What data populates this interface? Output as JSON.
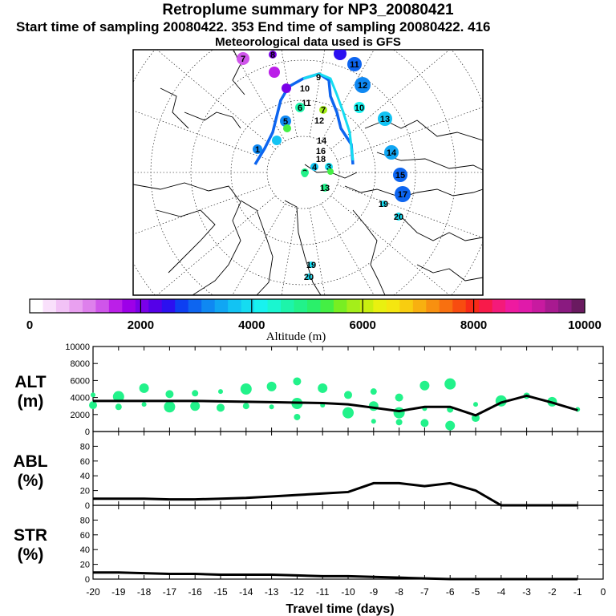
{
  "header": {
    "title": "Retroplume summary for NP3_20080421",
    "sampling": "Start time of sampling 20080422.   353     End time of sampling 20080422.   416",
    "met": "Meteorological data used is GFS"
  },
  "colorbar": {
    "ticks": [
      "0",
      "2000",
      "4000",
      "6000",
      "8000",
      "10000"
    ],
    "label": "Altitude (m)",
    "colors": [
      "#ffffff",
      "#f9e0fb",
      "#f2c2f6",
      "#e9a0f0",
      "#de80ec",
      "#cf55ea",
      "#bb1fe8",
      "#9d00e8",
      "#7a00e8",
      "#5500e8",
      "#2c10f0",
      "#0d3ff2",
      "#0d65f0",
      "#0f88f2",
      "#10a6f3",
      "#12c3f3",
      "#15dcf1",
      "#18f2ef",
      "#1af6d0",
      "#1df4aa",
      "#22f28a",
      "#2af06a",
      "#44ef44",
      "#78ee22",
      "#a4ee1a",
      "#c9ef10",
      "#e9f010",
      "#f5e610",
      "#f8cd10",
      "#f8b010",
      "#f89010",
      "#f87010",
      "#f84c10",
      "#f82a18",
      "#f81a4a",
      "#f41a7a",
      "#ee1aa0",
      "#e01aaa",
      "#c81aa0",
      "#a81a90",
      "#8a1a80",
      "#6a1a60"
    ]
  },
  "map": {
    "labels": [
      {
        "t": "7",
        "c": "#cf55ea"
      },
      {
        "t": "8",
        "c": "#7a00e8"
      },
      {
        "t": "11",
        "c": "#0d65f0"
      },
      {
        "t": "12",
        "c": "#0f88f2"
      },
      {
        "t": "13",
        "c": "#12c3f3"
      },
      {
        "t": "14",
        "c": "#10a6f3"
      },
      {
        "t": "15",
        "c": "#0d65f0"
      },
      {
        "t": "17",
        "c": "#0d65f0"
      },
      {
        "t": "10",
        "c": "#18f2ef"
      },
      {
        "t": "9",
        "c": "#ffffff"
      },
      {
        "t": "10",
        "c": "#ffffff"
      },
      {
        "t": "11",
        "c": "#ffffff"
      },
      {
        "t": "12",
        "c": "#ffffff"
      },
      {
        "t": "14",
        "c": "#ffffff"
      },
      {
        "t": "16",
        "c": "#ffffff"
      },
      {
        "t": "18",
        "c": "#ffffff"
      },
      {
        "t": "20",
        "c": "#15dcf1"
      },
      {
        "t": "19",
        "c": "#15dcf1"
      },
      {
        "t": "20",
        "c": "#15dcf1"
      },
      {
        "t": "19",
        "c": "#15dcf1"
      },
      {
        "t": "1",
        "c": "#0f88f2"
      },
      {
        "t": "5",
        "c": "#0f88f2"
      },
      {
        "t": "6",
        "c": "#1df4aa"
      },
      {
        "t": "7",
        "c": "#a4ee1a"
      },
      {
        "t": "3",
        "c": "#15dcf1"
      },
      {
        "t": "4",
        "c": "#12c3f3"
      },
      {
        "t": "2",
        "c": "#22f28a"
      },
      {
        "t": "13",
        "c": "#22f28a"
      }
    ]
  },
  "chart_data": [
    {
      "type": "scatter",
      "title": "ALT (m)",
      "ylabel": "ALT (m)",
      "xlabel": "",
      "ylim": [
        0,
        10000
      ],
      "yticks": [
        "0",
        "2000",
        "4000",
        "6000",
        "8000",
        "10000"
      ],
      "x": [
        -20,
        -19,
        -18,
        -17,
        -16,
        -15,
        -14,
        -13,
        -12,
        -11,
        -10,
        -9,
        -8,
        -7,
        -6,
        -5,
        -4,
        -3,
        -2,
        -1
      ],
      "mean_line": [
        3600,
        3600,
        3600,
        3600,
        3600,
        3550,
        3500,
        3450,
        3400,
        3350,
        3200,
        2800,
        2400,
        2900,
        2900,
        1900,
        3400,
        4200,
        3400,
        2500
      ],
      "scatter": [
        {
          "x": -20,
          "y": 4300
        },
        {
          "x": -20,
          "y": 3100
        },
        {
          "x": -19,
          "y": 4100
        },
        {
          "x": -19,
          "y": 2900
        },
        {
          "x": -18,
          "y": 5100
        },
        {
          "x": -18,
          "y": 3200
        },
        {
          "x": -17,
          "y": 4400
        },
        {
          "x": -17,
          "y": 2900
        },
        {
          "x": -16,
          "y": 4500
        },
        {
          "x": -16,
          "y": 3000
        },
        {
          "x": -15,
          "y": 4700
        },
        {
          "x": -15,
          "y": 2800
        },
        {
          "x": -14,
          "y": 5000
        },
        {
          "x": -14,
          "y": 3000
        },
        {
          "x": -13,
          "y": 5300
        },
        {
          "x": -13,
          "y": 2900
        },
        {
          "x": -12,
          "y": 5900
        },
        {
          "x": -12,
          "y": 3300
        },
        {
          "x": -12,
          "y": 1700
        },
        {
          "x": -11,
          "y": 5100
        },
        {
          "x": -11,
          "y": 3100
        },
        {
          "x": -10,
          "y": 4300
        },
        {
          "x": -10,
          "y": 2200
        },
        {
          "x": -9,
          "y": 4700
        },
        {
          "x": -9,
          "y": 3000
        },
        {
          "x": -9,
          "y": 1200
        },
        {
          "x": -8,
          "y": 4000
        },
        {
          "x": -8,
          "y": 2200
        },
        {
          "x": -8,
          "y": 1100
        },
        {
          "x": -7,
          "y": 5400
        },
        {
          "x": -7,
          "y": 2700
        },
        {
          "x": -7,
          "y": 1000
        },
        {
          "x": -6,
          "y": 5600
        },
        {
          "x": -6,
          "y": 2600
        },
        {
          "x": -6,
          "y": 700
        },
        {
          "x": -5,
          "y": 3200
        },
        {
          "x": -5,
          "y": 1600
        },
        {
          "x": -4,
          "y": 3600
        },
        {
          "x": -3,
          "y": 4200
        },
        {
          "x": -2,
          "y": 3500
        },
        {
          "x": -1,
          "y": 2600
        }
      ]
    },
    {
      "type": "line",
      "title": "ABL (%)",
      "ylabel": "ABL (%)",
      "ylim": [
        0,
        100
      ],
      "yticks": [
        "0",
        "20",
        "40",
        "60",
        "80"
      ],
      "x": [
        -20,
        -19,
        -18,
        -17,
        -16,
        -15,
        -14,
        -13,
        -12,
        -11,
        -10,
        -9,
        -8,
        -7,
        -6,
        -5,
        -4,
        -3,
        -2,
        -1
      ],
      "values": [
        9,
        9,
        9,
        8,
        8,
        9,
        10,
        12,
        14,
        16,
        18,
        30,
        30,
        26,
        30,
        20,
        0,
        0,
        0,
        0
      ]
    },
    {
      "type": "line",
      "title": "STR (%)",
      "ylabel": "STR (%)",
      "ylim": [
        0,
        100
      ],
      "yticks": [
        "0",
        "20",
        "40",
        "60",
        "80"
      ],
      "x": [
        -20,
        -19,
        -18,
        -17,
        -16,
        -15,
        -14,
        -13,
        -12,
        -11,
        -10,
        -9,
        -8,
        -7,
        -6,
        -5,
        -4,
        -3,
        -2,
        -1
      ],
      "values": [
        9,
        9,
        8,
        7,
        7,
        6,
        6,
        6,
        5,
        4,
        4,
        3,
        2,
        1,
        0,
        0,
        0,
        0,
        0,
        0
      ],
      "xlabel": "Travel time (days)",
      "xticks": [
        "-20",
        "-19",
        "-18",
        "-17",
        "-16",
        "-15",
        "-14",
        "-13",
        "-12",
        "-11",
        "-10",
        "-9",
        "-8",
        "-7",
        "-6",
        "-5",
        "-4",
        "-3",
        "-2",
        "-1",
        "0"
      ]
    }
  ]
}
